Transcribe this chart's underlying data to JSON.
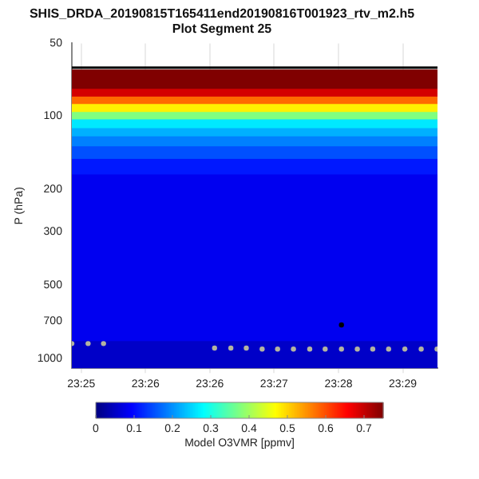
{
  "chart_data": {
    "type": "scatter",
    "title": "SHIS_DRDA_20190815T165411end20190816T001923_rtv_m2.h5",
    "subtitle": "Plot Segment 25",
    "ylabel": "P (hPa)",
    "clabel": "Model O3VMR [ppmv]",
    "clim": [
      0,
      0.75
    ],
    "cticks": [
      0,
      0.1,
      0.2,
      0.3,
      0.4,
      0.5,
      0.6,
      0.7
    ],
    "xlim": [
      23.4086,
      23.4939
    ],
    "xticks": [
      {
        "value": 23.4108,
        "label": "23:25"
      },
      {
        "value": 23.4258,
        "label": "23:26"
      },
      {
        "value": 23.4408,
        "label": "23:26"
      },
      {
        "value": 23.4558,
        "label": "23:27"
      },
      {
        "value": 23.4708,
        "label": "23:28"
      },
      {
        "value": 23.4858,
        "label": "23:29"
      }
    ],
    "ylim": [
      1100,
      50
    ],
    "yticks": [
      50,
      100,
      200,
      300,
      500,
      700,
      1000
    ],
    "log": "y",
    "grid": "x",
    "marker": "circle",
    "ref_lines": [
      {
        "axis": "y",
        "value": 63,
        "color": "#000000"
      }
    ],
    "bands": [
      {
        "axis": "y",
        "from": 64,
        "to": 77,
        "color": "#800000"
      },
      {
        "axis": "y",
        "from": 77,
        "to": 83,
        "color": "#d40000"
      },
      {
        "axis": "y",
        "from": 83,
        "to": 89,
        "color": "#ff6a00"
      },
      {
        "axis": "y",
        "from": 89,
        "to": 96,
        "color": "#fff000"
      },
      {
        "axis": "y",
        "from": 96,
        "to": 103,
        "color": "#80ff80"
      },
      {
        "axis": "y",
        "from": 103,
        "to": 112,
        "color": "#00e8ff"
      },
      {
        "axis": "y",
        "from": 112,
        "to": 121,
        "color": "#00b0ff"
      },
      {
        "axis": "y",
        "from": 121,
        "to": 133,
        "color": "#0080ff"
      },
      {
        "axis": "y",
        "from": 133,
        "to": 150,
        "color": "#0050ff"
      },
      {
        "axis": "y",
        "from": 150,
        "to": 174,
        "color": "#0018ff"
      },
      {
        "axis": "y",
        "from": 174,
        "to": 850,
        "color": "#0000f0"
      },
      {
        "axis": "y",
        "from": 850,
        "to": 1100,
        "color": "#0000c8"
      }
    ],
    "series": [
      {
        "color": "#b4b4a0",
        "x": [
          23.4086,
          23.4124,
          23.416,
          23.4419,
          23.4457,
          23.4493,
          23.453,
          23.4566,
          23.4603,
          23.4641,
          23.4677,
          23.4715,
          23.4752,
          23.4788,
          23.4825,
          23.4863,
          23.4901,
          23.4938
        ],
        "values": [
          870,
          870,
          870,
          908,
          908,
          908,
          917,
          917,
          917,
          917,
          917,
          917,
          917,
          917,
          917,
          917,
          917,
          917
        ]
      },
      {
        "color": "#000000",
        "x": [
          23.4715
        ],
        "values": [
          729
        ]
      }
    ]
  }
}
